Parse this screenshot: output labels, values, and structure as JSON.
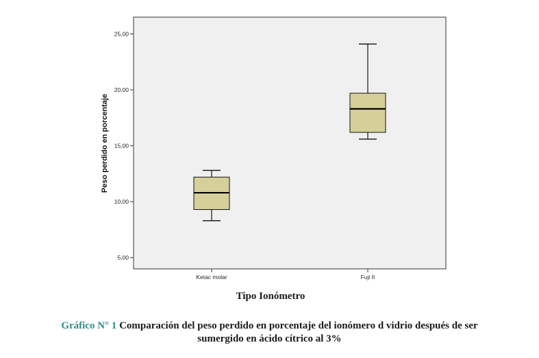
{
  "chart_data": {
    "type": "boxplot",
    "title": "",
    "xlabel": "Tipo Ionómetro",
    "ylabel": "Peso perdido en porcentaje",
    "ylim": [
      4.0,
      26.5
    ],
    "yticks": [
      5,
      10,
      15,
      20,
      25
    ],
    "ytick_labels": [
      "5,00",
      "10,00",
      "15,00",
      "20,00",
      "25,00"
    ],
    "grid": false,
    "categories": [
      "Ketac molar",
      "Fuji II"
    ],
    "boxes": [
      {
        "category": "Ketac molar",
        "min": 8.3,
        "q1": 9.3,
        "median": 10.8,
        "q3": 12.2,
        "max": 12.8
      },
      {
        "category": "Fuji II",
        "min": 15.6,
        "q1": 16.2,
        "median": 18.3,
        "q3": 19.7,
        "max": 24.1
      }
    ],
    "box_color": "#d6cf9a"
  },
  "caption": {
    "prefix": "Gráfico N° 1",
    "line1": " Comparación del peso perdido en porcentaje del ionómero d vidrio después de ser",
    "line2": "sumergido en ácido cítrico al 3%"
  }
}
